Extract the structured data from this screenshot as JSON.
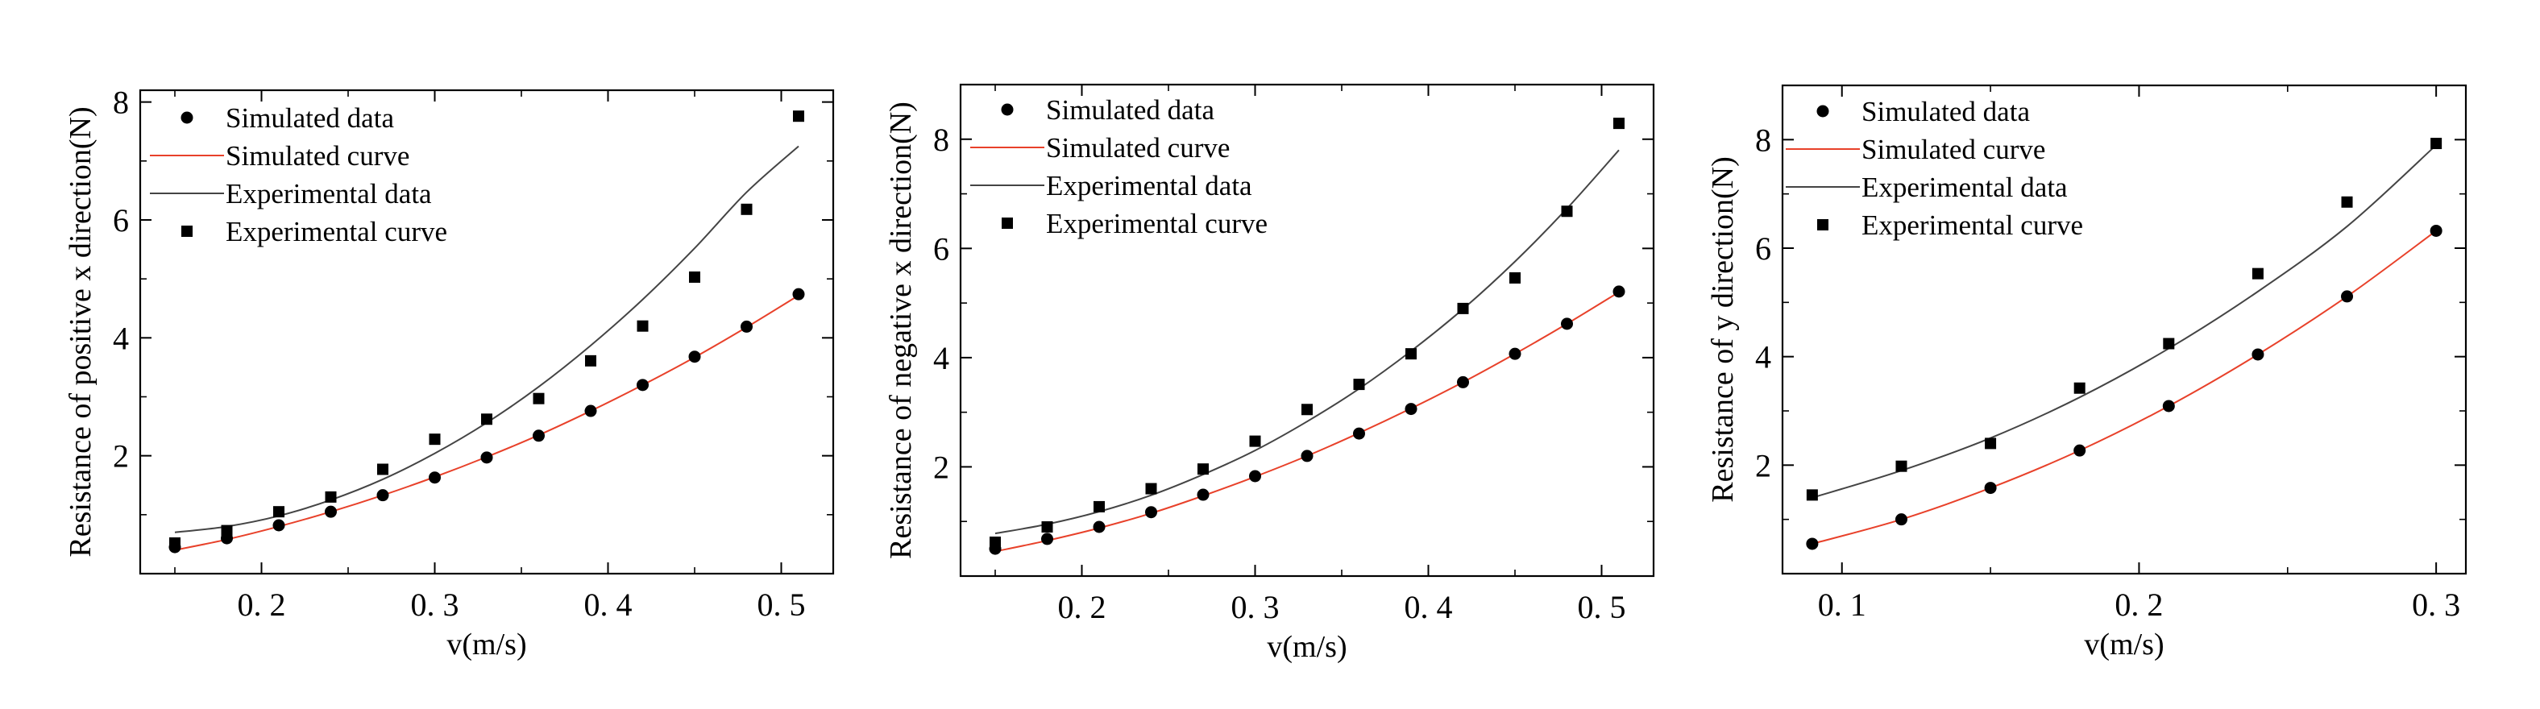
{
  "chart_data": [
    {
      "type": "scatter",
      "xlabel": "v(m/s)",
      "ylabel": "Resistance of positive x direction(N)",
      "xlim": [
        0.13,
        0.53
      ],
      "ylim": [
        0,
        8.2
      ],
      "xticks": [
        0.2,
        0.3,
        0.4,
        0.5
      ],
      "xtick_labels": [
        "0. 2",
        "0. 3",
        "0. 4",
        "0. 5"
      ],
      "yticks": [
        2,
        4,
        6,
        8
      ],
      "ytick_labels": [
        "2",
        "4",
        "6",
        "8"
      ],
      "legend": [
        "Simulated data",
        "Simulated curve",
        "Experimental data",
        "Experimental curve"
      ],
      "series": [
        {
          "name": "Simulated data",
          "marker": "circle",
          "color": "#000000",
          "x": [
            0.15,
            0.18,
            0.21,
            0.24,
            0.27,
            0.3,
            0.33,
            0.36,
            0.39,
            0.42,
            0.45,
            0.48,
            0.51
          ],
          "y": [
            0.45,
            0.6,
            0.82,
            1.05,
            1.33,
            1.63,
            1.97,
            2.34,
            2.76,
            3.2,
            3.68,
            4.19,
            4.74
          ]
        },
        {
          "name": "Simulated curve",
          "line": true,
          "color": "#e8412a",
          "x": [
            0.15,
            0.18,
            0.21,
            0.24,
            0.27,
            0.3,
            0.33,
            0.36,
            0.39,
            0.42,
            0.45,
            0.48,
            0.51
          ],
          "y": [
            0.4,
            0.58,
            0.8,
            1.05,
            1.33,
            1.64,
            1.98,
            2.35,
            2.76,
            3.2,
            3.67,
            4.18,
            4.72
          ]
        },
        {
          "name": "Experimental data",
          "marker": "square",
          "color": "#000000",
          "x": [
            0.15,
            0.18,
            0.21,
            0.24,
            0.27,
            0.3,
            0.33,
            0.36,
            0.39,
            0.42,
            0.45,
            0.48,
            0.51
          ],
          "y": [
            0.52,
            0.73,
            1.05,
            1.3,
            1.77,
            2.28,
            2.62,
            2.97,
            3.61,
            4.2,
            5.03,
            6.18,
            7.76
          ]
        },
        {
          "name": "Experimental curve",
          "line": true,
          "color": "#444444",
          "x": [
            0.15,
            0.18,
            0.21,
            0.24,
            0.27,
            0.3,
            0.33,
            0.36,
            0.39,
            0.42,
            0.45,
            0.48,
            0.51
          ],
          "y": [
            0.7,
            0.8,
            0.98,
            1.25,
            1.6,
            2.04,
            2.56,
            3.17,
            3.87,
            4.65,
            5.52,
            6.47,
            7.25
          ]
        }
      ]
    },
    {
      "type": "scatter",
      "xlabel": "v(m/s)",
      "ylabel": "Resistance of negative x direction(N)",
      "xlim": [
        0.13,
        0.53
      ],
      "ylim": [
        0,
        9.0
      ],
      "xticks": [
        0.2,
        0.3,
        0.4,
        0.5
      ],
      "xtick_labels": [
        "0. 2",
        "0. 3",
        "0. 4",
        "0. 5"
      ],
      "yticks": [
        2,
        4,
        6,
        8
      ],
      "ytick_labels": [
        "2",
        "4",
        "6",
        "8"
      ],
      "legend": [
        "Simulated data",
        "Simulated curve",
        "Experimental data",
        "Experimental curve"
      ],
      "series": [
        {
          "name": "Simulated data",
          "marker": "circle",
          "color": "#000000",
          "x": [
            0.15,
            0.18,
            0.21,
            0.24,
            0.27,
            0.3,
            0.33,
            0.36,
            0.39,
            0.42,
            0.45,
            0.48,
            0.51
          ],
          "y": [
            0.5,
            0.68,
            0.9,
            1.17,
            1.49,
            1.83,
            2.2,
            2.61,
            3.06,
            3.55,
            4.07,
            4.62,
            5.21
          ]
        },
        {
          "name": "Simulated curve",
          "line": true,
          "color": "#e8412a",
          "x": [
            0.15,
            0.18,
            0.21,
            0.24,
            0.27,
            0.3,
            0.33,
            0.36,
            0.39,
            0.42,
            0.45,
            0.48,
            0.51
          ],
          "y": [
            0.45,
            0.65,
            0.88,
            1.15,
            1.47,
            1.82,
            2.2,
            2.62,
            3.07,
            3.55,
            4.07,
            4.62,
            5.2
          ]
        },
        {
          "name": "Experimental data",
          "marker": "square",
          "color": "#000000",
          "x": [
            0.15,
            0.18,
            0.21,
            0.24,
            0.27,
            0.3,
            0.33,
            0.36,
            0.39,
            0.42,
            0.45,
            0.48,
            0.51
          ],
          "y": [
            0.62,
            0.9,
            1.27,
            1.6,
            1.96,
            2.47,
            3.05,
            3.51,
            4.07,
            4.9,
            5.46,
            6.68,
            8.29
          ]
        },
        {
          "name": "Experimental curve",
          "line": true,
          "color": "#444444",
          "x": [
            0.15,
            0.18,
            0.21,
            0.24,
            0.27,
            0.3,
            0.33,
            0.36,
            0.39,
            0.42,
            0.45,
            0.48,
            0.51
          ],
          "y": [
            0.78,
            0.95,
            1.18,
            1.48,
            1.86,
            2.3,
            2.83,
            3.43,
            4.12,
            4.89,
            5.76,
            6.73,
            7.8
          ]
        }
      ]
    },
    {
      "type": "scatter",
      "xlabel": "v(m/s)",
      "ylabel": "Resistance of y direction(N)",
      "xlim": [
        0.08,
        0.31
      ],
      "ylim": [
        0,
        9.0
      ],
      "xticks": [
        0.1,
        0.2,
        0.3
      ],
      "xtick_labels": [
        "0. 1",
        "0. 2",
        "0. 3"
      ],
      "yticks": [
        2,
        4,
        6,
        8
      ],
      "ytick_labels": [
        "2",
        "4",
        "6",
        "8"
      ],
      "legend": [
        "Simulated data",
        "Simulated curve",
        "Experimental data",
        "Experimental curve"
      ],
      "series": [
        {
          "name": "Simulated data",
          "marker": "circle",
          "color": "#000000",
          "x": [
            0.09,
            0.12,
            0.15,
            0.18,
            0.21,
            0.24,
            0.27,
            0.3
          ],
          "y": [
            0.55,
            1.0,
            1.58,
            2.27,
            3.09,
            4.04,
            5.11,
            6.32
          ]
        },
        {
          "name": "Simulated curve",
          "line": true,
          "color": "#e8412a",
          "x": [
            0.09,
            0.12,
            0.15,
            0.18,
            0.21,
            0.24,
            0.27,
            0.3
          ],
          "y": [
            0.55,
            1.0,
            1.58,
            2.27,
            3.09,
            4.04,
            5.11,
            6.32
          ]
        },
        {
          "name": "Experimental data",
          "marker": "square",
          "color": "#000000",
          "x": [
            0.09,
            0.12,
            0.15,
            0.18,
            0.21,
            0.24,
            0.27,
            0.3
          ],
          "y": [
            1.45,
            1.98,
            2.4,
            3.42,
            4.24,
            5.53,
            6.85,
            7.93
          ]
        },
        {
          "name": "Experimental curve",
          "line": true,
          "color": "#444444",
          "x": [
            0.09,
            0.12,
            0.15,
            0.18,
            0.21,
            0.24,
            0.27,
            0.3
          ],
          "y": [
            1.4,
            1.9,
            2.5,
            3.25,
            4.15,
            5.2,
            6.4,
            7.9
          ]
        }
      ]
    }
  ]
}
